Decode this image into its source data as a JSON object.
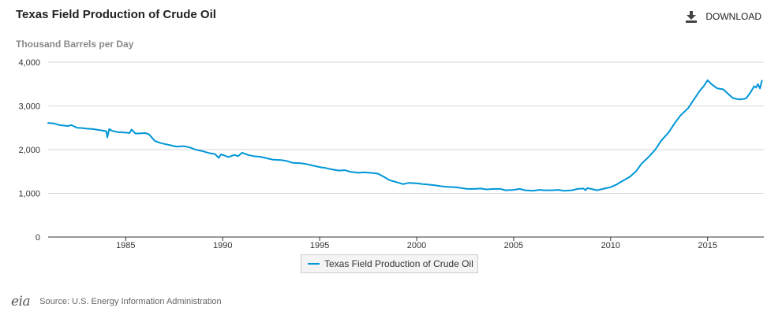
{
  "header": {
    "title": "Texas Field Production of Crude Oil",
    "download_label": "DOWNLOAD",
    "download_icon": "download-icon"
  },
  "units_label": "Thousand Barrels per Day",
  "legend": {
    "label": "Texas Field Production of Crude Oil"
  },
  "footer": {
    "logo_text": "eia",
    "source": "Source: U.S. Energy Information Administration"
  },
  "colors": {
    "series": "#0096d7",
    "grid": "#d6d6d6",
    "axis": "#333333"
  },
  "chart_data": {
    "type": "line",
    "title": "Texas Field Production of Crude Oil",
    "ylabel": "Thousand Barrels per Day",
    "xlabel": "",
    "ylim": [
      0,
      4000
    ],
    "xlim": [
      1981.0,
      2017.9
    ],
    "yticks": [
      0,
      1000,
      2000,
      3000,
      4000
    ],
    "ytick_labels": [
      "0",
      "1,000",
      "2,000",
      "3,000",
      "4,000"
    ],
    "xticks": [
      1985,
      1990,
      1995,
      2000,
      2005,
      2010,
      2015
    ],
    "xtick_labels": [
      "1985",
      "1990",
      "1995",
      "2000",
      "2005",
      "2010",
      "2015"
    ],
    "grid": true,
    "legend_position": "bottom-center",
    "series": [
      {
        "name": "Texas Field Production of Crude Oil",
        "x": [
          1981.0,
          1981.3,
          1981.6,
          1982.0,
          1982.2,
          1982.5,
          1982.8,
          1983.0,
          1983.3,
          1983.6,
          1983.9,
          1984.0,
          1984.05,
          1984.15,
          1984.3,
          1984.6,
          1985.0,
          1985.2,
          1985.3,
          1985.5,
          1985.7,
          1986.0,
          1986.2,
          1986.5,
          1986.8,
          1987.0,
          1987.3,
          1987.6,
          1988.0,
          1988.3,
          1988.6,
          1989.0,
          1989.3,
          1989.6,
          1989.8,
          1989.9,
          1990.0,
          1990.3,
          1990.6,
          1990.8,
          1991.0,
          1991.3,
          1991.6,
          1992.0,
          1992.3,
          1992.6,
          1993.0,
          1993.3,
          1993.6,
          1994.0,
          1994.3,
          1994.6,
          1995.0,
          1995.3,
          1995.6,
          1996.0,
          1996.3,
          1996.6,
          1997.0,
          1997.3,
          1997.6,
          1998.0,
          1998.3,
          1998.6,
          1999.0,
          1999.3,
          1999.6,
          2000.0,
          2000.3,
          2000.6,
          2001.0,
          2001.3,
          2001.6,
          2002.0,
          2002.3,
          2002.6,
          2003.0,
          2003.3,
          2003.6,
          2004.0,
          2004.3,
          2004.6,
          2005.0,
          2005.3,
          2005.6,
          2006.0,
          2006.3,
          2006.6,
          2007.0,
          2007.3,
          2007.6,
          2008.0,
          2008.3,
          2008.6,
          2008.7,
          2008.8,
          2009.0,
          2009.3,
          2009.6,
          2010.0,
          2010.3,
          2010.6,
          2011.0,
          2011.3,
          2011.6,
          2012.0,
          2012.3,
          2012.6,
          2013.0,
          2013.3,
          2013.6,
          2014.0,
          2014.3,
          2014.6,
          2014.8,
          2015.0,
          2015.2,
          2015.5,
          2015.8,
          2016.0,
          2016.3,
          2016.6,
          2016.9,
          2017.0,
          2017.2,
          2017.4,
          2017.5,
          2017.6,
          2017.7,
          2017.8
        ],
        "y": [
          2610,
          2600,
          2560,
          2540,
          2560,
          2500,
          2490,
          2480,
          2470,
          2450,
          2430,
          2420,
          2280,
          2470,
          2430,
          2400,
          2390,
          2380,
          2460,
          2370,
          2370,
          2380,
          2350,
          2200,
          2150,
          2130,
          2100,
          2070,
          2080,
          2050,
          2000,
          1960,
          1920,
          1900,
          1810,
          1890,
          1880,
          1830,
          1880,
          1850,
          1930,
          1880,
          1850,
          1830,
          1800,
          1770,
          1760,
          1740,
          1700,
          1690,
          1670,
          1640,
          1600,
          1580,
          1550,
          1520,
          1530,
          1490,
          1470,
          1480,
          1470,
          1450,
          1380,
          1300,
          1250,
          1210,
          1240,
          1230,
          1210,
          1200,
          1180,
          1160,
          1150,
          1140,
          1120,
          1100,
          1100,
          1110,
          1090,
          1100,
          1100,
          1070,
          1080,
          1100,
          1070,
          1060,
          1080,
          1070,
          1070,
          1080,
          1060,
          1070,
          1100,
          1110,
          1070,
          1120,
          1100,
          1070,
          1100,
          1140,
          1200,
          1280,
          1380,
          1500,
          1680,
          1850,
          2000,
          2200,
          2400,
          2600,
          2780,
          2950,
          3150,
          3350,
          3450,
          3590,
          3500,
          3400,
          3380,
          3300,
          3180,
          3150,
          3160,
          3180,
          3300,
          3450,
          3420,
          3500,
          3400,
          3580
        ]
      }
    ]
  }
}
